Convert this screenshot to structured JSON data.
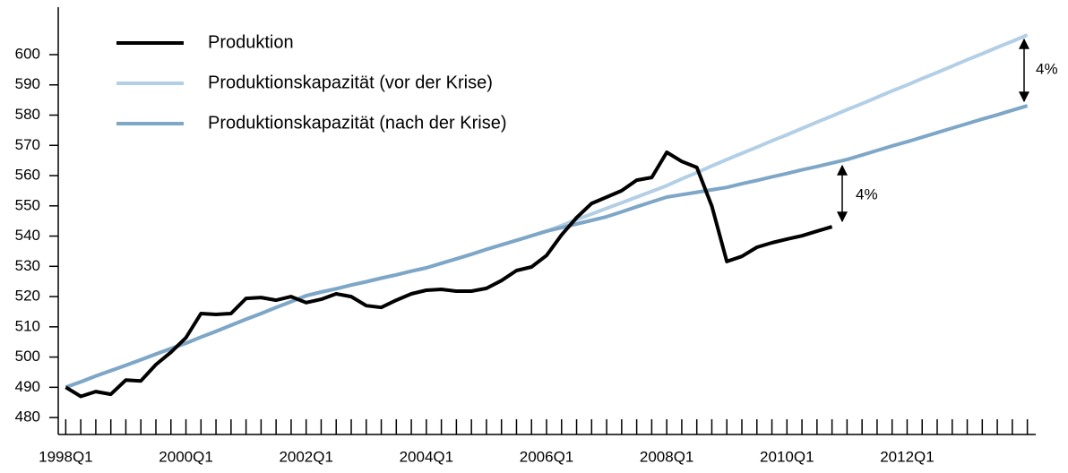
{
  "chart_data": {
    "type": "line",
    "categories": [
      "1998Q1",
      null,
      null,
      null,
      null,
      null,
      null,
      null,
      "2000Q1",
      null,
      null,
      null,
      null,
      null,
      null,
      null,
      "2002Q1",
      null,
      null,
      null,
      null,
      null,
      null,
      null,
      "2004Q1",
      null,
      null,
      null,
      null,
      null,
      null,
      null,
      "2006Q1",
      null,
      null,
      null,
      null,
      null,
      null,
      null,
      "2008Q1",
      null,
      null,
      null,
      null,
      null,
      null,
      null,
      "2010Q1",
      null,
      null,
      null,
      null,
      null,
      null,
      null,
      "2012Q1",
      null,
      null,
      null,
      null,
      null,
      null,
      null,
      null
    ],
    "series": [
      {
        "name": "Produktion",
        "color": "#000000",
        "values": [
          490.0,
          487.0,
          488.6,
          487.7,
          492.4,
          492.1,
          497.5,
          501.6,
          506.4,
          514.4,
          514.1,
          514.4,
          519.4,
          519.7,
          518.8,
          520.0,
          518.0,
          519.1,
          520.9,
          520.0,
          517.0,
          516.4,
          518.8,
          520.9,
          522.1,
          522.4,
          521.8,
          521.8,
          522.7,
          525.3,
          528.6,
          529.8,
          533.6,
          540.4,
          546.1,
          550.8,
          552.9,
          555.0,
          558.5,
          559.4,
          567.7,
          564.7,
          562.7,
          549.9,
          531.6,
          533.3,
          536.3,
          537.8,
          539.0,
          540.1,
          541.6,
          543.1,
          null,
          null,
          null,
          null,
          null,
          null,
          null,
          null,
          null,
          null,
          null,
          null,
          null
        ]
      },
      {
        "name": "Produktionskapazität (vor der Krise)",
        "color": "#b3cfe5",
        "values": [
          490.0,
          491.8,
          493.7,
          495.5,
          497.3,
          499.1,
          501.0,
          502.8,
          504.6,
          506.6,
          508.5,
          510.5,
          512.5,
          514.4,
          516.4,
          518.3,
          520.3,
          521.5,
          522.6,
          523.8,
          524.9,
          526.1,
          527.2,
          528.4,
          529.5,
          531.0,
          532.5,
          534.0,
          535.6,
          537.1,
          538.6,
          540.1,
          541.6,
          543.5,
          545.4,
          547.3,
          549.2,
          551.0,
          552.9,
          554.8,
          556.7,
          558.9,
          561.0,
          563.2,
          565.3,
          567.4,
          569.4,
          571.5,
          573.5,
          575.6,
          577.7,
          579.7,
          581.8,
          583.8,
          585.9,
          588.0,
          590.0,
          592.1,
          594.1,
          596.2,
          598.3,
          600.3,
          602.4,
          604.4,
          606.5
        ]
      },
      {
        "name": "Produktionskapazität (nach der Krise)",
        "color": "#7ea6c6",
        "values": [
          490.0,
          491.8,
          493.7,
          495.5,
          497.3,
          499.1,
          501.0,
          502.8,
          504.6,
          506.6,
          508.5,
          510.5,
          512.5,
          514.4,
          516.4,
          518.3,
          520.3,
          521.5,
          522.6,
          523.8,
          524.9,
          526.1,
          527.2,
          528.4,
          529.5,
          531.0,
          532.5,
          534.0,
          535.6,
          537.1,
          538.6,
          540.1,
          541.6,
          542.8,
          544.0,
          545.2,
          546.4,
          548.0,
          549.7,
          551.3,
          552.9,
          553.7,
          554.5,
          555.3,
          556.1,
          557.3,
          558.4,
          559.6,
          560.7,
          561.9,
          563.0,
          564.2,
          565.3,
          566.8,
          568.3,
          569.8,
          571.2,
          572.7,
          574.2,
          575.7,
          577.2,
          578.7,
          580.1,
          581.6,
          583.1
        ]
      }
    ],
    "ylim": [
      474.4,
      615.7
    ],
    "yticks": [
      480,
      490,
      500,
      510,
      520,
      530,
      540,
      550,
      560,
      570,
      580,
      590,
      600
    ],
    "legend": "upper left",
    "annotations": [
      "4%",
      "4%"
    ]
  }
}
